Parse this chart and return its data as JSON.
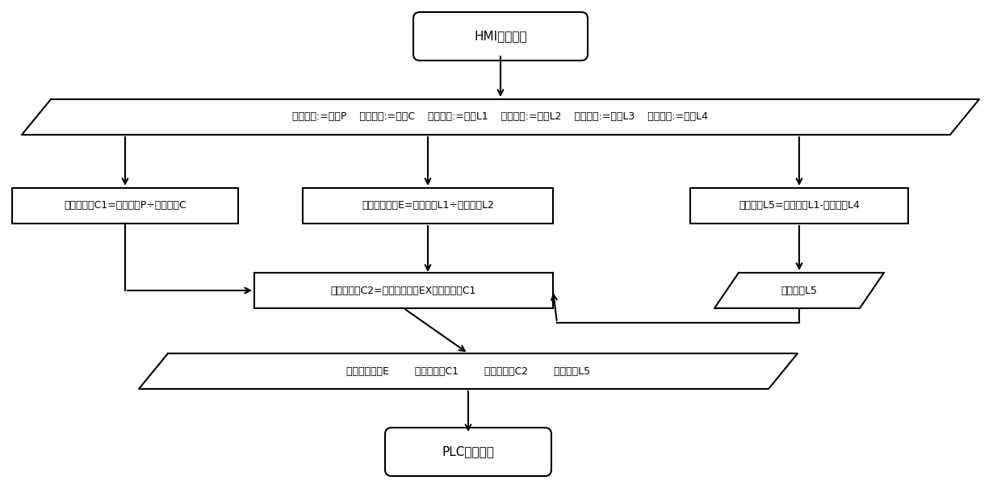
{
  "bg_color": "#ffffff",
  "hmi_label": "HMI输入参数",
  "plc_label": "PLC中间参数",
  "params_bar_label": "编码脉冲:=常数P    编码周长:=常数C    设定长度:=常数L1    实测长度:=常数L2    当前长度:=常数L3    减速距离:=常数L4",
  "c1_label": "轮径原系数C1=编码脉冲P÷编码周长C",
  "e_label": "定长度误差率E=设定长度L1÷实测长度L2",
  "l5calc_label": "高速长度L5=设定长度L1-减速距离L4",
  "c2_label": "轮径新系数C2=定长度误差率EX轮径原系数C1",
  "l5out_label": "高速长度L5",
  "output_bar_label": "定长度误差率E        轮径原系数C1        轮径新系数C2        高速长度L5"
}
